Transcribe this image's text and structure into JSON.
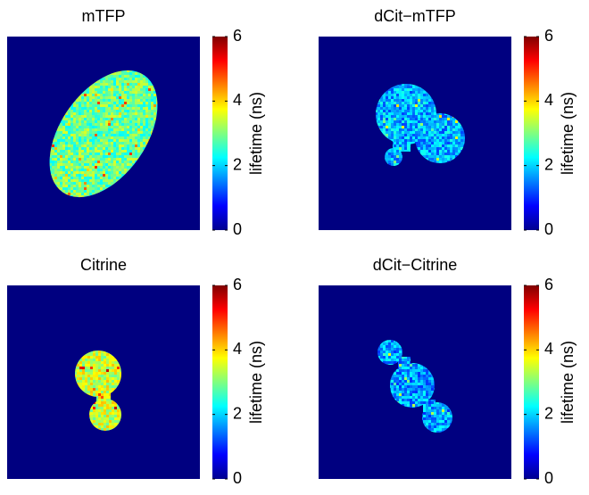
{
  "chart_data": [
    {
      "type": "image",
      "title": "mTFP",
      "colorbar_label": "lifetime (ns)",
      "colormap": "jet",
      "clim": [
        0,
        6
      ],
      "cticks": [
        0,
        2,
        4,
        6
      ]
    },
    {
      "type": "image",
      "title": "dCit−mTFP",
      "colorbar_label": "lifetime (ns)",
      "colormap": "jet",
      "clim": [
        0,
        6
      ],
      "cticks": [
        0,
        2,
        4,
        6
      ]
    },
    {
      "type": "image",
      "title": "Citrine",
      "colorbar_label": "lifetime (ns)",
      "colormap": "jet",
      "clim": [
        0,
        6
      ],
      "cticks": [
        0,
        2,
        4,
        6
      ]
    },
    {
      "type": "image",
      "title": "dCit−Citrine",
      "colorbar_label": "lifetime (ns)",
      "colormap": "jet",
      "clim": [
        0,
        6
      ],
      "cticks": [
        0,
        2,
        4,
        6
      ]
    }
  ]
}
